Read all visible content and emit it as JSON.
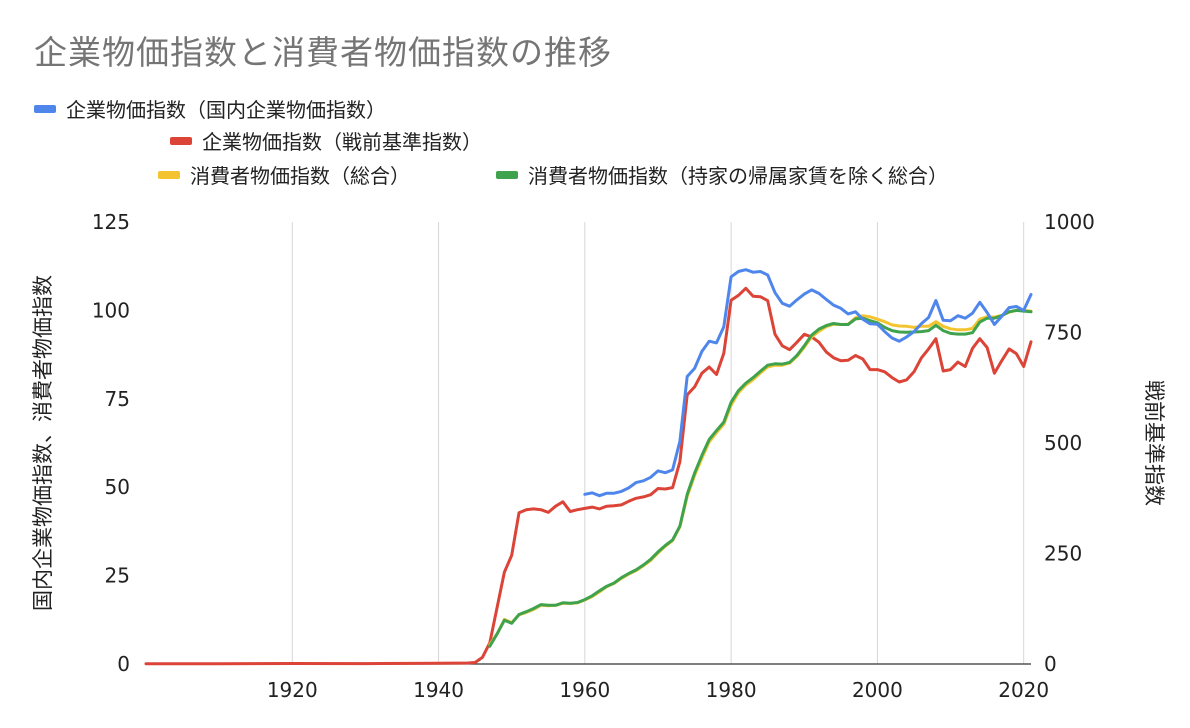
{
  "chart_data": {
    "type": "line",
    "title": "企業物価指数と消費者物価指数の推移",
    "ylabel_left": "国内企業物価指数、消費者物価指数",
    "ylabel_right": "戦前基準指数",
    "xlim": [
      1900,
      2021
    ],
    "ylim_left": [
      0,
      125
    ],
    "ylim_right": [
      0,
      1000
    ],
    "x_ticks": [
      1920,
      1940,
      1960,
      1980,
      2000,
      2020
    ],
    "y_ticks_left": [
      0,
      25,
      50,
      75,
      100,
      125
    ],
    "y_ticks_right": [
      0,
      250,
      500,
      750,
      1000
    ],
    "grid": "vertical",
    "legend_position": "top",
    "series": [
      {
        "name": "企業物価指数（国内企業物価指数）",
        "color": "#4f86ec",
        "axis": "left",
        "points": [
          [
            1960,
            48
          ],
          [
            1961,
            48.4
          ],
          [
            1962,
            47.6
          ],
          [
            1963,
            48.3
          ],
          [
            1964,
            48.3
          ],
          [
            1965,
            48.8
          ],
          [
            1966,
            49.8
          ],
          [
            1967,
            51.3
          ],
          [
            1968,
            51.8
          ],
          [
            1969,
            52.8
          ],
          [
            1970,
            54.6
          ],
          [
            1971,
            54.1
          ],
          [
            1972,
            54.9
          ],
          [
            1973,
            63
          ],
          [
            1974,
            81.3
          ],
          [
            1975,
            83.6
          ],
          [
            1976,
            88.4
          ],
          [
            1977,
            91.3
          ],
          [
            1978,
            90.8
          ],
          [
            1979,
            95.4
          ],
          [
            1980,
            109.5
          ],
          [
            1981,
            111
          ],
          [
            1982,
            111.5
          ],
          [
            1983,
            110.8
          ],
          [
            1984,
            111
          ],
          [
            1985,
            110
          ],
          [
            1986,
            105
          ],
          [
            1987,
            102
          ],
          [
            1988,
            101.2
          ],
          [
            1989,
            103
          ],
          [
            1990,
            104.6
          ],
          [
            1991,
            105.8
          ],
          [
            1992,
            104.8
          ],
          [
            1993,
            103.1
          ],
          [
            1994,
            101.5
          ],
          [
            1995,
            100.6
          ],
          [
            1996,
            99
          ],
          [
            1997,
            99.6
          ],
          [
            1998,
            97.5
          ],
          [
            1999,
            96.2
          ],
          [
            2000,
            96.1
          ],
          [
            2001,
            94
          ],
          [
            2002,
            92.2
          ],
          [
            2003,
            91.3
          ],
          [
            2004,
            92.5
          ],
          [
            2005,
            94
          ],
          [
            2006,
            96.2
          ],
          [
            2007,
            98
          ],
          [
            2008,
            102.8
          ],
          [
            2009,
            97.2
          ],
          [
            2010,
            97.1
          ],
          [
            2011,
            98.5
          ],
          [
            2012,
            97.8
          ],
          [
            2013,
            99.2
          ],
          [
            2014,
            102.3
          ],
          [
            2015,
            99.4
          ],
          [
            2016,
            96
          ],
          [
            2017,
            98.3
          ],
          [
            2018,
            100.8
          ],
          [
            2019,
            101.1
          ],
          [
            2020,
            100
          ],
          [
            2021,
            104.5
          ]
        ]
      },
      {
        "name": "企業物価指数（戦前基準指数）",
        "color": "#db4437",
        "axis": "right",
        "points": [
          [
            1900,
            0.5
          ],
          [
            1910,
            0.6
          ],
          [
            1920,
            1.2
          ],
          [
            1930,
            0.9
          ],
          [
            1940,
            1.6
          ],
          [
            1944,
            2.2
          ],
          [
            1945,
            3.5
          ],
          [
            1946,
            15
          ],
          [
            1947,
            48
          ],
          [
            1948,
            128
          ],
          [
            1949,
            208
          ],
          [
            1950,
            246
          ],
          [
            1951,
            342
          ],
          [
            1952,
            349
          ],
          [
            1953,
            351
          ],
          [
            1954,
            349
          ],
          [
            1955,
            343
          ],
          [
            1956,
            357
          ],
          [
            1957,
            367
          ],
          [
            1958,
            345
          ],
          [
            1959,
            349
          ],
          [
            1960,
            352
          ],
          [
            1961,
            355
          ],
          [
            1962,
            351
          ],
          [
            1963,
            357
          ],
          [
            1964,
            358
          ],
          [
            1965,
            360
          ],
          [
            1966,
            368
          ],
          [
            1967,
            375
          ],
          [
            1968,
            378
          ],
          [
            1969,
            383
          ],
          [
            1970,
            397
          ],
          [
            1971,
            396
          ],
          [
            1972,
            399
          ],
          [
            1973,
            458
          ],
          [
            1974,
            609
          ],
          [
            1975,
            627
          ],
          [
            1976,
            658
          ],
          [
            1977,
            672
          ],
          [
            1978,
            655
          ],
          [
            1979,
            703
          ],
          [
            1980,
            823
          ],
          [
            1981,
            834
          ],
          [
            1982,
            850
          ],
          [
            1983,
            832
          ],
          [
            1984,
            831
          ],
          [
            1985,
            822
          ],
          [
            1986,
            746
          ],
          [
            1987,
            720
          ],
          [
            1988,
            711
          ],
          [
            1989,
            728
          ],
          [
            1990,
            746
          ],
          [
            1991,
            740
          ],
          [
            1992,
            728
          ],
          [
            1993,
            706
          ],
          [
            1994,
            693
          ],
          [
            1995,
            686
          ],
          [
            1996,
            687
          ],
          [
            1997,
            698
          ],
          [
            1998,
            690
          ],
          [
            1999,
            666
          ],
          [
            2000,
            666
          ],
          [
            2001,
            661
          ],
          [
            2002,
            648
          ],
          [
            2003,
            638
          ],
          [
            2004,
            643
          ],
          [
            2005,
            661
          ],
          [
            2006,
            692
          ],
          [
            2007,
            713
          ],
          [
            2008,
            736
          ],
          [
            2009,
            663
          ],
          [
            2010,
            666
          ],
          [
            2011,
            683
          ],
          [
            2012,
            673
          ],
          [
            2013,
            714
          ],
          [
            2014,
            736
          ],
          [
            2015,
            716
          ],
          [
            2016,
            658
          ],
          [
            2017,
            686
          ],
          [
            2018,
            713
          ],
          [
            2019,
            702
          ],
          [
            2020,
            673
          ],
          [
            2021,
            729
          ]
        ]
      },
      {
        "name": "消費者物価指数（総合）",
        "color": "#f4c430",
        "axis": "left",
        "points": [
          [
            1947,
            5.5
          ],
          [
            1948,
            8.5
          ],
          [
            1949,
            12.6
          ],
          [
            1950,
            11.7
          ],
          [
            1951,
            13.9
          ],
          [
            1952,
            14.6
          ],
          [
            1953,
            15.4
          ],
          [
            1954,
            16.6
          ],
          [
            1955,
            16.5
          ],
          [
            1956,
            16.6
          ],
          [
            1957,
            17.2
          ],
          [
            1958,
            17.1
          ],
          [
            1959,
            17.3
          ],
          [
            1960,
            18.1
          ],
          [
            1961,
            19.1
          ],
          [
            1962,
            20.4
          ],
          [
            1963,
            21.9
          ],
          [
            1964,
            22.8
          ],
          [
            1965,
            24.2
          ],
          [
            1966,
            25.4
          ],
          [
            1967,
            26.4
          ],
          [
            1968,
            27.8
          ],
          [
            1969,
            29.3
          ],
          [
            1970,
            31.4
          ],
          [
            1971,
            33.3
          ],
          [
            1972,
            34.9
          ],
          [
            1973,
            38.8
          ],
          [
            1974,
            47.4
          ],
          [
            1975,
            53.3
          ],
          [
            1976,
            58.2
          ],
          [
            1977,
            62.8
          ],
          [
            1978,
            65.4
          ],
          [
            1979,
            67.8
          ],
          [
            1980,
            73.2
          ],
          [
            1981,
            76.7
          ],
          [
            1982,
            78.9
          ],
          [
            1983,
            80.4
          ],
          [
            1984,
            82.3
          ],
          [
            1985,
            84
          ],
          [
            1986,
            84.5
          ],
          [
            1987,
            84.5
          ],
          [
            1988,
            85.1
          ],
          [
            1989,
            87
          ],
          [
            1990,
            89.6
          ],
          [
            1991,
            92.5
          ],
          [
            1992,
            94.1
          ],
          [
            1993,
            95.4
          ],
          [
            1994,
            96.1
          ],
          [
            1995,
            96
          ],
          [
            1996,
            96.1
          ],
          [
            1997,
            97.9
          ],
          [
            1998,
            98.5
          ],
          [
            1999,
            98.2
          ],
          [
            2000,
            97.5
          ],
          [
            2001,
            96.8
          ],
          [
            2002,
            95.9
          ],
          [
            2003,
            95.6
          ],
          [
            2004,
            95.5
          ],
          [
            2005,
            95.2
          ],
          [
            2006,
            95.5
          ],
          [
            2007,
            95.5
          ],
          [
            2008,
            96.8
          ],
          [
            2009,
            95.5
          ],
          [
            2010,
            94.8
          ],
          [
            2011,
            94.5
          ],
          [
            2012,
            94.5
          ],
          [
            2013,
            94.9
          ],
          [
            2014,
            97.5
          ],
          [
            2015,
            98.2
          ],
          [
            2016,
            98.1
          ],
          [
            2017,
            98.6
          ],
          [
            2018,
            99.5
          ],
          [
            2019,
            100
          ],
          [
            2020,
            100
          ],
          [
            2021,
            99.8
          ]
        ]
      },
      {
        "name": "消費者物価指数（持家の帰属家賃を除く総合）",
        "color": "#3fa34d",
        "axis": "left",
        "points": [
          [
            1947,
            5
          ],
          [
            1948,
            8.5
          ],
          [
            1949,
            12.4
          ],
          [
            1950,
            11.5
          ],
          [
            1951,
            14
          ],
          [
            1952,
            14.8
          ],
          [
            1953,
            15.7
          ],
          [
            1954,
            16.8
          ],
          [
            1955,
            16.6
          ],
          [
            1956,
            16.6
          ],
          [
            1957,
            17.3
          ],
          [
            1958,
            17.2
          ],
          [
            1959,
            17.4
          ],
          [
            1960,
            18.2
          ],
          [
            1961,
            19.3
          ],
          [
            1962,
            20.7
          ],
          [
            1963,
            22
          ],
          [
            1964,
            22.9
          ],
          [
            1965,
            24.4
          ],
          [
            1966,
            25.6
          ],
          [
            1967,
            26.6
          ],
          [
            1968,
            28
          ],
          [
            1969,
            29.6
          ],
          [
            1970,
            31.7
          ],
          [
            1971,
            33.5
          ],
          [
            1972,
            35.1
          ],
          [
            1973,
            39
          ],
          [
            1974,
            48
          ],
          [
            1975,
            54
          ],
          [
            1976,
            59
          ],
          [
            1977,
            63.5
          ],
          [
            1978,
            66
          ],
          [
            1979,
            68.4
          ],
          [
            1980,
            74
          ],
          [
            1981,
            77.3
          ],
          [
            1982,
            79.4
          ],
          [
            1983,
            81
          ],
          [
            1984,
            82.8
          ],
          [
            1985,
            84.5
          ],
          [
            1986,
            84.9
          ],
          [
            1987,
            84.8
          ],
          [
            1988,
            85.3
          ],
          [
            1989,
            87.3
          ],
          [
            1990,
            90
          ],
          [
            1991,
            93
          ],
          [
            1992,
            94.7
          ],
          [
            1993,
            95.7
          ],
          [
            1994,
            96.3
          ],
          [
            1995,
            96
          ],
          [
            1996,
            96
          ],
          [
            1997,
            97.6
          ],
          [
            1998,
            97.8
          ],
          [
            1999,
            97.1
          ],
          [
            2000,
            96.5
          ],
          [
            2001,
            95.2
          ],
          [
            2002,
            94.3
          ],
          [
            2003,
            93.9
          ],
          [
            2004,
            93.8
          ],
          [
            2005,
            93.9
          ],
          [
            2006,
            94
          ],
          [
            2007,
            94.3
          ],
          [
            2008,
            95.8
          ],
          [
            2009,
            94.3
          ],
          [
            2010,
            93.5
          ],
          [
            2011,
            93.3
          ],
          [
            2012,
            93.3
          ],
          [
            2013,
            93.7
          ],
          [
            2014,
            96.7
          ],
          [
            2015,
            97.8
          ],
          [
            2016,
            97.8
          ],
          [
            2017,
            98.5
          ],
          [
            2018,
            99.6
          ],
          [
            2019,
            100
          ],
          [
            2020,
            99.8
          ],
          [
            2021,
            99.6
          ]
        ]
      }
    ]
  }
}
